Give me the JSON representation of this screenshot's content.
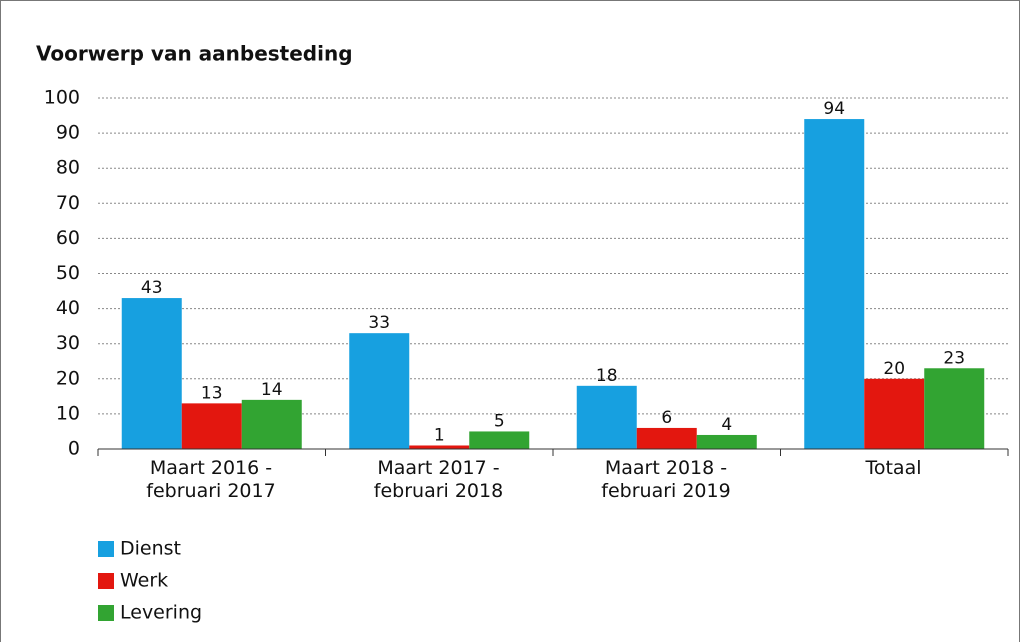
{
  "chart_data": {
    "type": "bar",
    "title": "Voorwerp van aanbesteding",
    "categories": [
      "Maart 2016 -\nfebruari 2017",
      "Maart 2017 -\nfebruari 2018",
      "Maart 2018 -\nfebruari 2019",
      "Totaal"
    ],
    "series": [
      {
        "name": "Dienst",
        "color": "#17a0e0",
        "values": [
          43,
          33,
          18,
          94
        ]
      },
      {
        "name": "Werk",
        "color": "#e3170f",
        "values": [
          13,
          1,
          6,
          20
        ]
      },
      {
        "name": "Levering",
        "color": "#32a432",
        "values": [
          14,
          5,
          4,
          23
        ]
      }
    ],
    "ylim": [
      0,
      100
    ],
    "yticks": [
      0,
      10,
      20,
      30,
      40,
      50,
      60,
      70,
      80,
      90,
      100
    ],
    "grid": true,
    "legend": "bottom-left"
  }
}
